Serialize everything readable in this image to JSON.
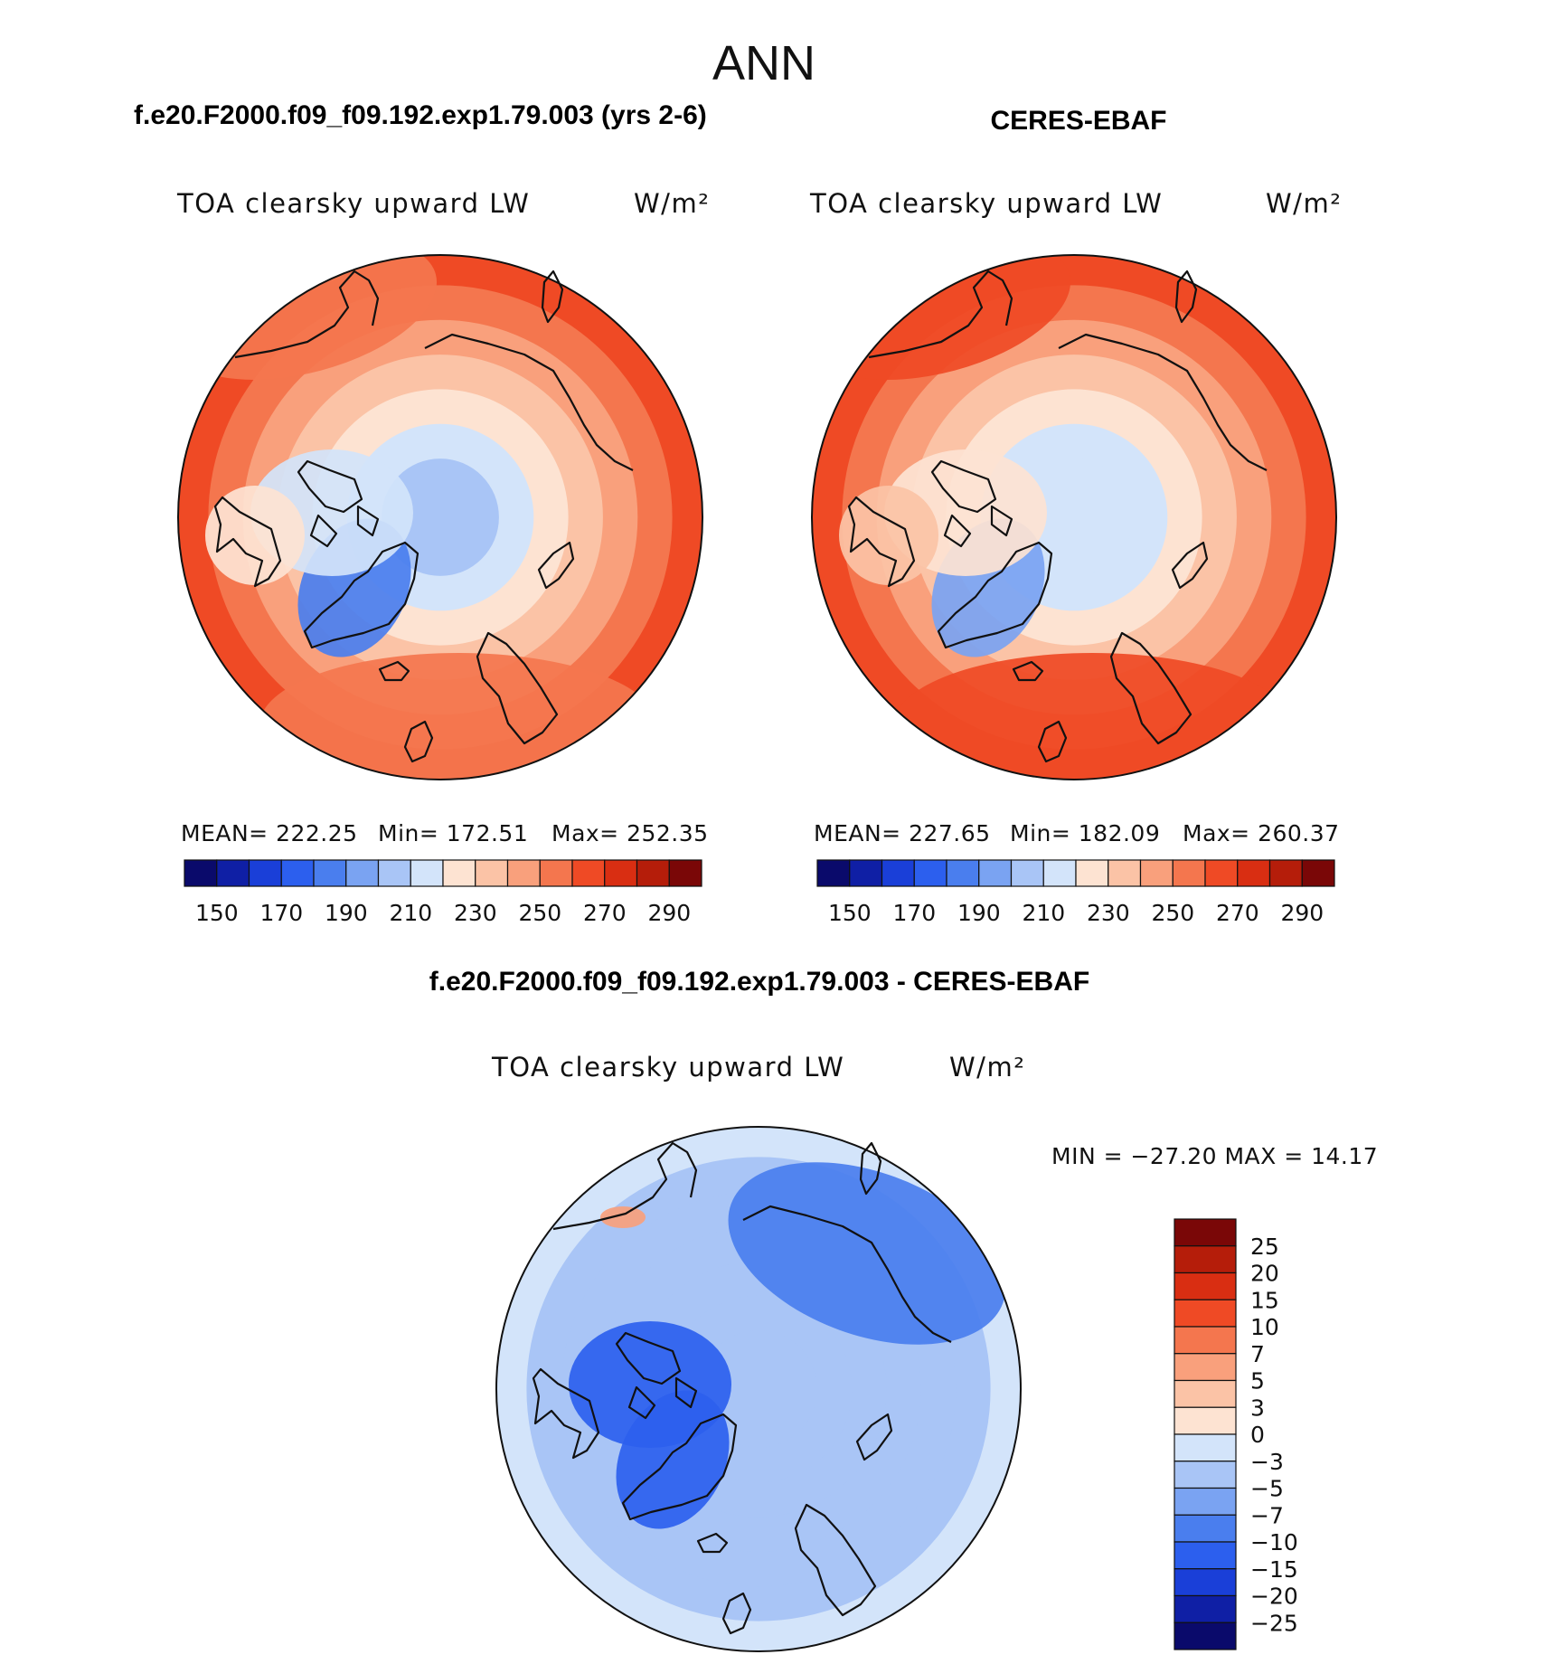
{
  "title": "ANN",
  "left_header": "f.e20.F2000.f09_f09.192.exp1.79.003 (yrs 2-6)",
  "right_header": "CERES-EBAF",
  "diff_header": "f.e20.F2000.f09_f09.192.exp1.79.003 - CERES-EBAF",
  "palette_abs": [
    "#0a0a6b",
    "#0f1fa5",
    "#1a3fd8",
    "#2c5fee",
    "#4a7eee",
    "#7aa3f2",
    "#a9c5f6",
    "#d3e4fa",
    "#fde3d2",
    "#fbc3a6",
    "#f9a07c",
    "#f4764e",
    "#ef4a25",
    "#d92e12",
    "#b51d0a",
    "#7a0707"
  ],
  "palette_diff": [
    "#0a0a6b",
    "#0f1fa5",
    "#1a3fd8",
    "#2c5fee",
    "#4a7eee",
    "#7aa3f2",
    "#a9c5f6",
    "#d3e4fa",
    "#fde3d2",
    "#fbc3a6",
    "#f9a07c",
    "#f4764e",
    "#ef4a25",
    "#d92e12",
    "#b51d0a",
    "#7a0707"
  ],
  "chart_data": [
    {
      "type": "heatmap",
      "projection": "north-polar-stereographic",
      "variable_label": "TOA clearsky upward LW",
      "units": "W/m²",
      "stats": {
        "mean": "MEAN= 222.25",
        "min": "Min= 172.51",
        "max": "Max= 252.35"
      },
      "colorbar": {
        "orientation": "horizontal",
        "tick_labels": [
          "150",
          "170",
          "190",
          "210",
          "230",
          "250",
          "270",
          "290"
        ],
        "levels": [
          140,
          150,
          160,
          170,
          180,
          190,
          200,
          210,
          220,
          230,
          240,
          250,
          260,
          270,
          280,
          290
        ]
      },
      "field": {
        "pole_value": 192,
        "rim_value": 250,
        "features": [
          {
            "name": "Greenland",
            "value": 172
          },
          {
            "name": "Canadian Archipelago",
            "value": 205
          },
          {
            "name": "Hudson Bay",
            "value": 212
          },
          {
            "name": "North Atlantic",
            "value": 248
          },
          {
            "name": "North Pacific",
            "value": 245
          }
        ]
      }
    },
    {
      "type": "heatmap",
      "projection": "north-polar-stereographic",
      "variable_label": "TOA clearsky upward LW",
      "units": "W/m²",
      "stats": {
        "mean": "MEAN= 227.65",
        "min": "Min= 182.09",
        "max": "Max= 260.37"
      },
      "colorbar": {
        "orientation": "horizontal",
        "tick_labels": [
          "150",
          "170",
          "190",
          "210",
          "230",
          "250",
          "270",
          "290"
        ],
        "levels": [
          140,
          150,
          160,
          170,
          180,
          190,
          200,
          210,
          220,
          230,
          240,
          250,
          260,
          270,
          280,
          290
        ]
      },
      "field": {
        "pole_value": 200,
        "rim_value": 256,
        "features": [
          {
            "name": "Greenland",
            "value": 182
          },
          {
            "name": "Canadian Archipelago",
            "value": 212
          },
          {
            "name": "Hudson Bay",
            "value": 220
          },
          {
            "name": "North Atlantic",
            "value": 258
          },
          {
            "name": "North Pacific",
            "value": 255
          }
        ]
      }
    },
    {
      "type": "heatmap",
      "projection": "north-polar-stereographic",
      "variable_label": "TOA clearsky upward LW",
      "units": "W/m²",
      "stats": {
        "minmax": "MIN = −27.20 MAX =  14.17"
      },
      "colorbar": {
        "orientation": "vertical",
        "tick_labels": [
          "25",
          "20",
          "15",
          "10",
          "7",
          "5",
          "3",
          "0",
          "−3",
          "−5",
          "−7",
          "−10",
          "−15",
          "−20",
          "−25"
        ],
        "levels": [
          -25,
          -20,
          -15,
          -10,
          -7,
          -5,
          -3,
          0,
          3,
          5,
          7,
          10,
          15,
          20,
          25
        ]
      },
      "field": {
        "pole_value": -5,
        "rim_value": -3,
        "features": [
          {
            "name": "Greenland",
            "value": -12
          },
          {
            "name": "Canadian Archipelago",
            "value": -12
          },
          {
            "name": "Siberia",
            "value": -10
          },
          {
            "name": "Bering Strait",
            "value": 5
          }
        ]
      }
    }
  ]
}
